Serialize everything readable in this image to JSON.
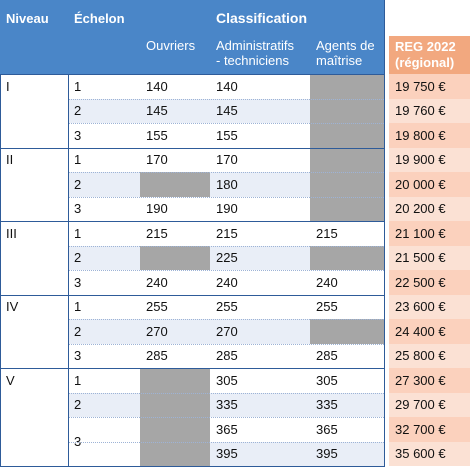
{
  "headers": {
    "niveau": "Niveau",
    "echelon": "Échelon",
    "classification": "Classification",
    "ouvriers": "Ouvriers",
    "admin_line1": "Administratifs",
    "admin_line2": "- techniciens",
    "agents_line1": "Agents de",
    "agents_line2": "maîtrise",
    "reg_line1": "REG 2022",
    "reg_line2": "(régional)"
  },
  "rows": [
    {
      "niveau": "I",
      "echelon": "1",
      "ouvriers": "140",
      "admin": "140",
      "agents": "",
      "reg": "19 750 €"
    },
    {
      "niveau": "",
      "echelon": "2",
      "ouvriers": "145",
      "admin": "145",
      "agents": "",
      "reg": "19 760 €"
    },
    {
      "niveau": "",
      "echelon": "3",
      "ouvriers": "155",
      "admin": "155",
      "agents": "",
      "reg": "19 800 €"
    },
    {
      "niveau": "II",
      "echelon": "1",
      "ouvriers": "170",
      "admin": "170",
      "agents": "",
      "reg": "19 900 €"
    },
    {
      "niveau": "",
      "echelon": "2",
      "ouvriers": "",
      "admin": "180",
      "agents": "",
      "reg": "20 000 €"
    },
    {
      "niveau": "",
      "echelon": "3",
      "ouvriers": "190",
      "admin": "190",
      "agents": "",
      "reg": "20 200 €"
    },
    {
      "niveau": "III",
      "echelon": "1",
      "ouvriers": "215",
      "admin": "215",
      "agents": "215",
      "reg": "21 100 €"
    },
    {
      "niveau": "",
      "echelon": "2",
      "ouvriers": "",
      "admin": "225",
      "agents": "",
      "reg": "21 500 €"
    },
    {
      "niveau": "",
      "echelon": "3",
      "ouvriers": "240",
      "admin": "240",
      "agents": "240",
      "reg": "22 500 €"
    },
    {
      "niveau": "IV",
      "echelon": "1",
      "ouvriers": "255",
      "admin": "255",
      "agents": "255",
      "reg": "23 600 €"
    },
    {
      "niveau": "",
      "echelon": "2",
      "ouvriers": "270",
      "admin": "270",
      "agents": "",
      "reg": "24 400 €"
    },
    {
      "niveau": "",
      "echelon": "3",
      "ouvriers": "285",
      "admin": "285",
      "agents": "285",
      "reg": "25 800 €"
    },
    {
      "niveau": "V",
      "echelon": "1",
      "ouvriers": "",
      "admin": "305",
      "agents": "305",
      "reg": "27 300 €"
    },
    {
      "niveau": "",
      "echelon": "2",
      "ouvriers": "",
      "admin": "335",
      "agents": "335",
      "reg": "29 700 €"
    },
    {
      "niveau": "",
      "echelon": "3",
      "ouvriers": "",
      "admin": "365",
      "agents": "365",
      "reg": "32 700 €"
    },
    {
      "niveau": "",
      "echelon": "",
      "ouvriers": "",
      "admin": "395",
      "agents": "395",
      "reg": "35 600 €"
    }
  ],
  "colors": {
    "header_blue": "#4a86c8",
    "header_orange": "#f2a87f",
    "band_blue": "#e9eef7",
    "empty_gray": "#a6a6a6",
    "reg_pink": "#fbe1d4"
  }
}
